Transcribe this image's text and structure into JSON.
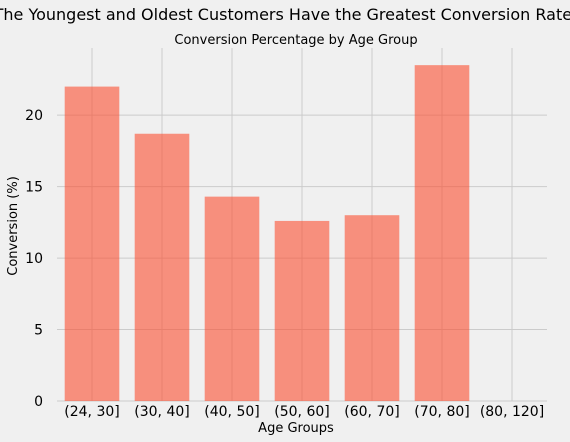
{
  "figure": {
    "suptitle": "The Youngest and Oldest Customers Have the Greatest Conversion Rates"
  },
  "chart_data": {
    "type": "bar",
    "title": "Conversion Percentage by Age Group",
    "xlabel": "Age Groups",
    "ylabel": "Conversion (%)",
    "categories": [
      "(24, 30]",
      "(30, 40]",
      "(40, 50]",
      "(50, 60]",
      "(60, 70]",
      "(70, 80]",
      "(80, 120]"
    ],
    "values": [
      22.0,
      18.7,
      14.3,
      12.6,
      13.0,
      23.5,
      0
    ],
    "ylim": [
      0,
      24.7
    ],
    "yticks": [
      0,
      5,
      10,
      15,
      20
    ],
    "grid": true,
    "bar_color": "#fc4f30",
    "background": "#f0f0f0",
    "grid_color": "#cbcbcb"
  }
}
